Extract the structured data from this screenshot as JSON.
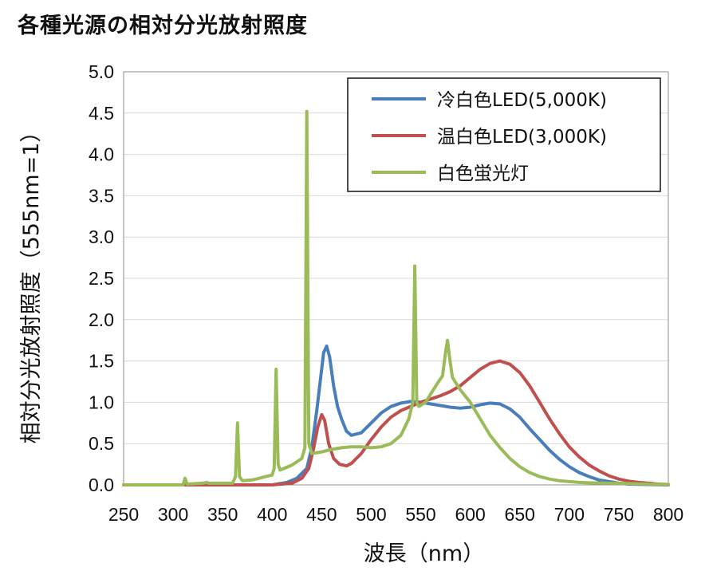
{
  "chart_data": {
    "type": "line",
    "title": "各種光源の相対分光放射照度",
    "xlabel": "波長（nm）",
    "ylabel": "相対分光放射照度（555nm=1）",
    "xlim": [
      250,
      800
    ],
    "ylim": [
      0,
      5
    ],
    "x_ticks": [
      "250",
      "300",
      "350",
      "400",
      "450",
      "500",
      "550",
      "600",
      "650",
      "700",
      "750",
      "800"
    ],
    "y_ticks": [
      "0.0",
      "0.5",
      "1.0",
      "1.5",
      "2.0",
      "2.5",
      "3.0",
      "3.5",
      "4.0",
      "4.5",
      "5.0"
    ],
    "grid": "horizontal",
    "legend_position": "top-right",
    "series": [
      {
        "name": "冷白色LED(5,000K)",
        "color": "#4a7ebb",
        "points": [
          [
            250,
            0
          ],
          [
            400,
            0
          ],
          [
            415,
            0.03
          ],
          [
            425,
            0.08
          ],
          [
            435,
            0.2
          ],
          [
            440,
            0.45
          ],
          [
            445,
            0.9
          ],
          [
            449,
            1.3
          ],
          [
            452,
            1.6
          ],
          [
            455,
            1.68
          ],
          [
            458,
            1.55
          ],
          [
            462,
            1.2
          ],
          [
            466,
            0.95
          ],
          [
            470,
            0.8
          ],
          [
            475,
            0.65
          ],
          [
            480,
            0.6
          ],
          [
            490,
            0.63
          ],
          [
            500,
            0.75
          ],
          [
            510,
            0.87
          ],
          [
            520,
            0.95
          ],
          [
            530,
            0.99
          ],
          [
            540,
            1.01
          ],
          [
            550,
            1.0
          ],
          [
            560,
            0.98
          ],
          [
            570,
            0.96
          ],
          [
            580,
            0.94
          ],
          [
            590,
            0.93
          ],
          [
            600,
            0.94
          ],
          [
            610,
            0.97
          ],
          [
            620,
            0.99
          ],
          [
            630,
            0.98
          ],
          [
            640,
            0.92
          ],
          [
            650,
            0.82
          ],
          [
            660,
            0.68
          ],
          [
            670,
            0.55
          ],
          [
            680,
            0.42
          ],
          [
            690,
            0.31
          ],
          [
            700,
            0.22
          ],
          [
            710,
            0.15
          ],
          [
            720,
            0.1
          ],
          [
            730,
            0.06
          ],
          [
            740,
            0.04
          ],
          [
            750,
            0.02
          ],
          [
            760,
            0.01
          ],
          [
            780,
            0.005
          ],
          [
            800,
            0
          ]
        ]
      },
      {
        "name": "温白色LED(3,000K)",
        "color": "#c0504d",
        "points": [
          [
            250,
            0
          ],
          [
            400,
            0
          ],
          [
            420,
            0.02
          ],
          [
            430,
            0.08
          ],
          [
            437,
            0.2
          ],
          [
            442,
            0.45
          ],
          [
            446,
            0.7
          ],
          [
            450,
            0.85
          ],
          [
            453,
            0.78
          ],
          [
            457,
            0.5
          ],
          [
            462,
            0.32
          ],
          [
            468,
            0.25
          ],
          [
            475,
            0.23
          ],
          [
            480,
            0.26
          ],
          [
            490,
            0.38
          ],
          [
            500,
            0.55
          ],
          [
            510,
            0.7
          ],
          [
            520,
            0.82
          ],
          [
            530,
            0.9
          ],
          [
            540,
            0.95
          ],
          [
            550,
            1.0
          ],
          [
            560,
            1.04
          ],
          [
            570,
            1.08
          ],
          [
            580,
            1.13
          ],
          [
            590,
            1.2
          ],
          [
            600,
            1.3
          ],
          [
            610,
            1.4
          ],
          [
            620,
            1.47
          ],
          [
            630,
            1.5
          ],
          [
            640,
            1.46
          ],
          [
            650,
            1.36
          ],
          [
            660,
            1.2
          ],
          [
            670,
            1.0
          ],
          [
            680,
            0.8
          ],
          [
            690,
            0.62
          ],
          [
            700,
            0.46
          ],
          [
            710,
            0.34
          ],
          [
            720,
            0.24
          ],
          [
            730,
            0.17
          ],
          [
            740,
            0.11
          ],
          [
            750,
            0.07
          ],
          [
            760,
            0.045
          ],
          [
            770,
            0.03
          ],
          [
            780,
            0.02
          ],
          [
            790,
            0.01
          ],
          [
            800,
            0.005
          ]
        ]
      },
      {
        "name": "白色蛍光灯",
        "color": "#9bbb59",
        "points": [
          [
            250,
            0
          ],
          [
            310,
            0
          ],
          [
            312,
            0.08
          ],
          [
            314,
            0.01
          ],
          [
            330,
            0.02
          ],
          [
            334,
            0.03
          ],
          [
            336,
            0.02
          ],
          [
            360,
            0.02
          ],
          [
            363,
            0.1
          ],
          [
            365,
            0.75
          ],
          [
            367,
            0.1
          ],
          [
            370,
            0.05
          ],
          [
            380,
            0.06
          ],
          [
            400,
            0.12
          ],
          [
            402,
            0.2
          ],
          [
            404,
            1.4
          ],
          [
            406,
            0.25
          ],
          [
            408,
            0.18
          ],
          [
            420,
            0.24
          ],
          [
            430,
            0.32
          ],
          [
            433,
            0.45
          ],
          [
            435,
            4.52
          ],
          [
            437,
            0.5
          ],
          [
            440,
            0.38
          ],
          [
            450,
            0.4
          ],
          [
            460,
            0.43
          ],
          [
            470,
            0.45
          ],
          [
            480,
            0.46
          ],
          [
            490,
            0.46
          ],
          [
            500,
            0.45
          ],
          [
            510,
            0.46
          ],
          [
            520,
            0.5
          ],
          [
            530,
            0.6
          ],
          [
            538,
            0.8
          ],
          [
            542,
            1.0
          ],
          [
            544,
            2.65
          ],
          [
            546,
            1.0
          ],
          [
            548,
            0.95
          ],
          [
            555,
            1.0
          ],
          [
            560,
            1.1
          ],
          [
            568,
            1.25
          ],
          [
            572,
            1.32
          ],
          [
            575,
            1.6
          ],
          [
            577,
            1.75
          ],
          [
            579,
            1.55
          ],
          [
            582,
            1.3
          ],
          [
            590,
            1.15
          ],
          [
            600,
            1.0
          ],
          [
            610,
            0.8
          ],
          [
            620,
            0.6
          ],
          [
            630,
            0.45
          ],
          [
            640,
            0.32
          ],
          [
            650,
            0.22
          ],
          [
            660,
            0.15
          ],
          [
            670,
            0.1
          ],
          [
            680,
            0.07
          ],
          [
            690,
            0.05
          ],
          [
            700,
            0.04
          ],
          [
            710,
            0.03
          ],
          [
            720,
            0.025
          ],
          [
            740,
            0.02
          ],
          [
            760,
            0.015
          ],
          [
            780,
            0.01
          ],
          [
            800,
            0.005
          ]
        ]
      }
    ]
  }
}
